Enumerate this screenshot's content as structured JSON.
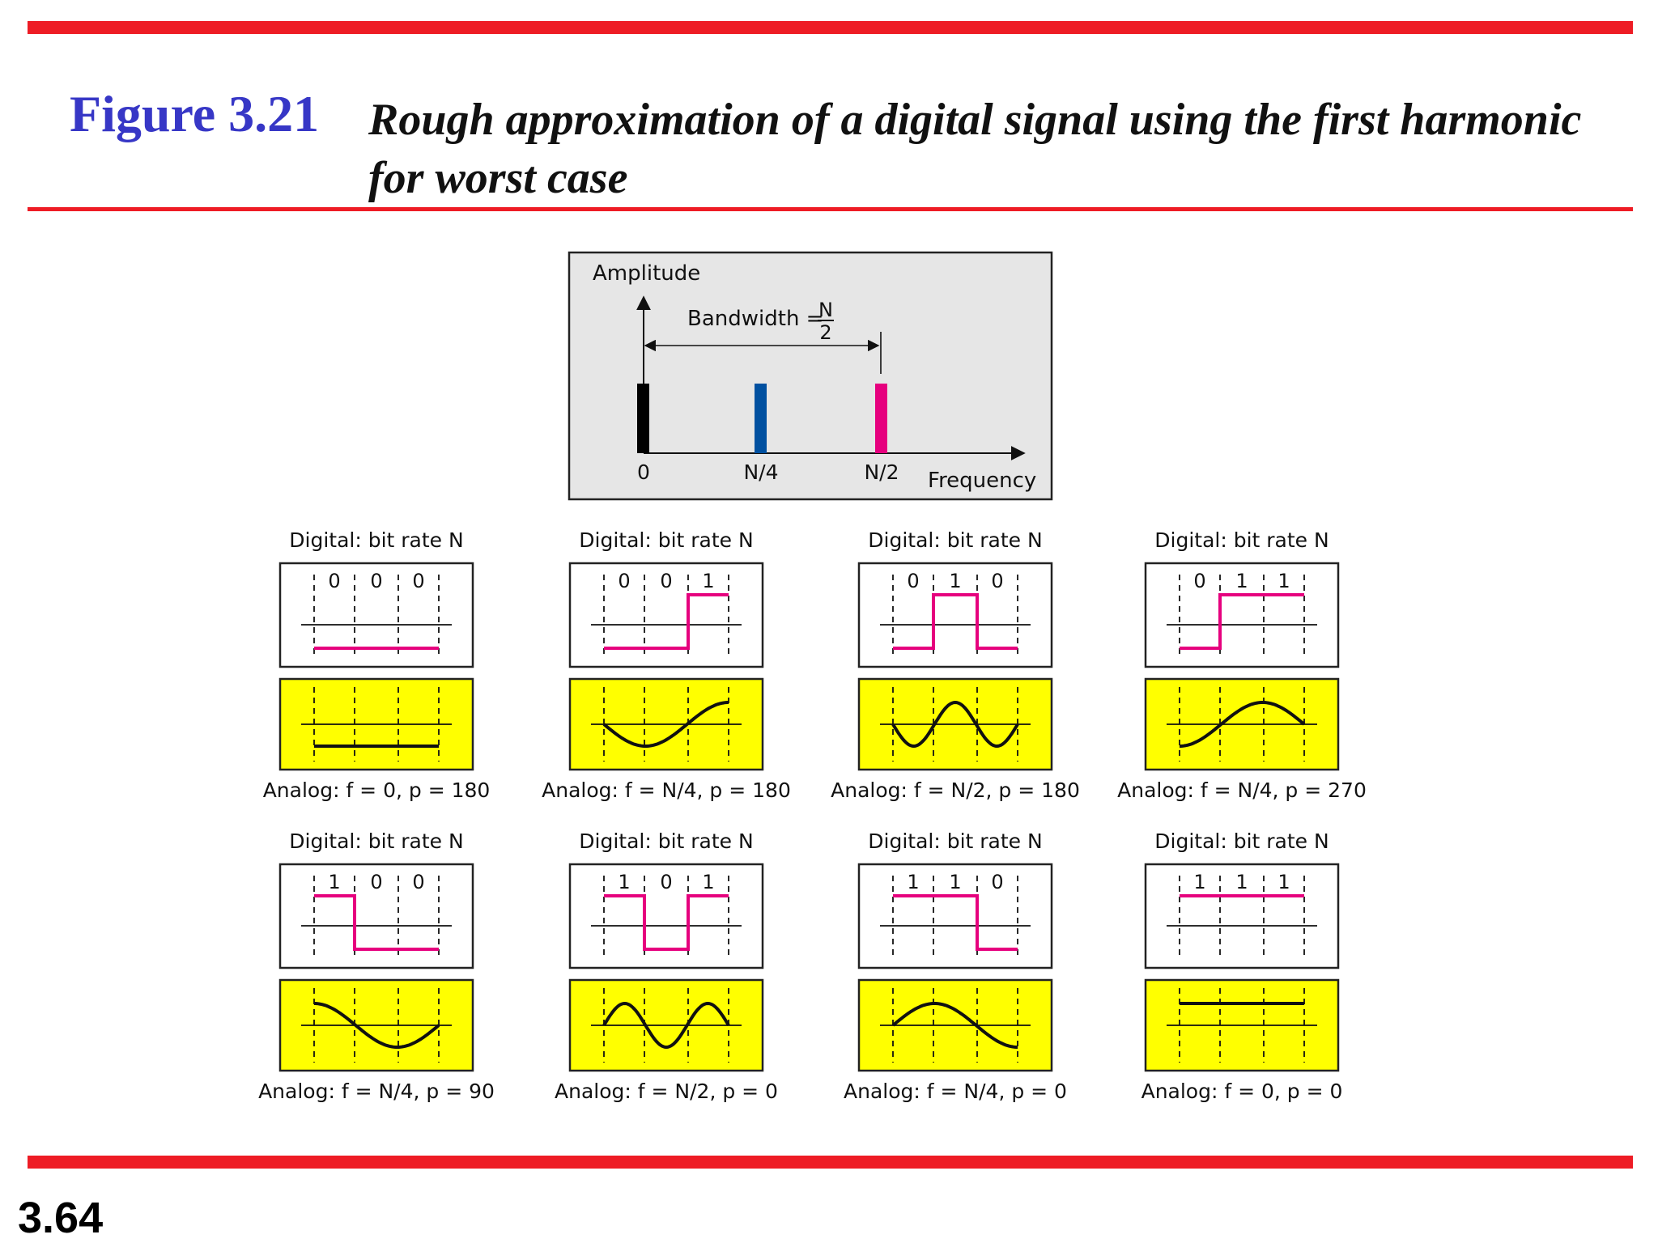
{
  "title": {
    "number": "Figure 3.21",
    "lines": [
      "Rough approximation of a digital signal using the first harmonic",
      "for worst case"
    ]
  },
  "slide_number": "3.64",
  "colors": {
    "rule": "#ee1c25",
    "title_number": "#3737c6",
    "digital": "#e6007e",
    "analog_fill": "#ffff00",
    "spectrum_fill": "#e6e6e6",
    "bar_0": "#000000",
    "bar_n4": "#0050a0",
    "bar_n2": "#e6007e"
  },
  "spectrum": {
    "y_label": "Amplitude",
    "x_label": "Frequency",
    "bandwidth_label": "Bandwidth =",
    "bandwidth_num": "N",
    "bandwidth_den": "2",
    "ticks": [
      "0",
      "N/4",
      "N/2"
    ]
  },
  "panels": [
    {
      "digital_label": "Digital: bit rate N",
      "bits": [
        "0",
        "0",
        "0"
      ],
      "analog_label": "Analog: f = 0, p = 180",
      "harmonics": 0,
      "phase": 180
    },
    {
      "digital_label": "Digital: bit rate N",
      "bits": [
        "0",
        "0",
        "1"
      ],
      "analog_label": "Analog: f = N/4, p = 180",
      "harmonics": 1,
      "phase": 180
    },
    {
      "digital_label": "Digital: bit rate N",
      "bits": [
        "0",
        "1",
        "0"
      ],
      "analog_label": "Analog: f = N/2, p = 180",
      "harmonics": 2,
      "phase": 180
    },
    {
      "digital_label": "Digital: bit rate N",
      "bits": [
        "0",
        "1",
        "1"
      ],
      "analog_label": "Analog: f = N/4, p = 270",
      "harmonics": 1,
      "phase": 270
    },
    {
      "digital_label": "Digital: bit rate N",
      "bits": [
        "1",
        "0",
        "0"
      ],
      "analog_label": "Analog: f = N/4, p = 90",
      "harmonics": 1,
      "phase": 90
    },
    {
      "digital_label": "Digital: bit rate N",
      "bits": [
        "1",
        "0",
        "1"
      ],
      "analog_label": "Analog: f = N/2, p = 0",
      "harmonics": 2,
      "phase": 0
    },
    {
      "digital_label": "Digital: bit rate N",
      "bits": [
        "1",
        "1",
        "0"
      ],
      "analog_label": "Analog: f = N/4, p = 0",
      "harmonics": 1,
      "phase": 0
    },
    {
      "digital_label": "Digital: bit rate N",
      "bits": [
        "1",
        "1",
        "1"
      ],
      "analog_label": "Analog: f = 0, p = 0",
      "harmonics": 0,
      "phase": 0
    }
  ]
}
